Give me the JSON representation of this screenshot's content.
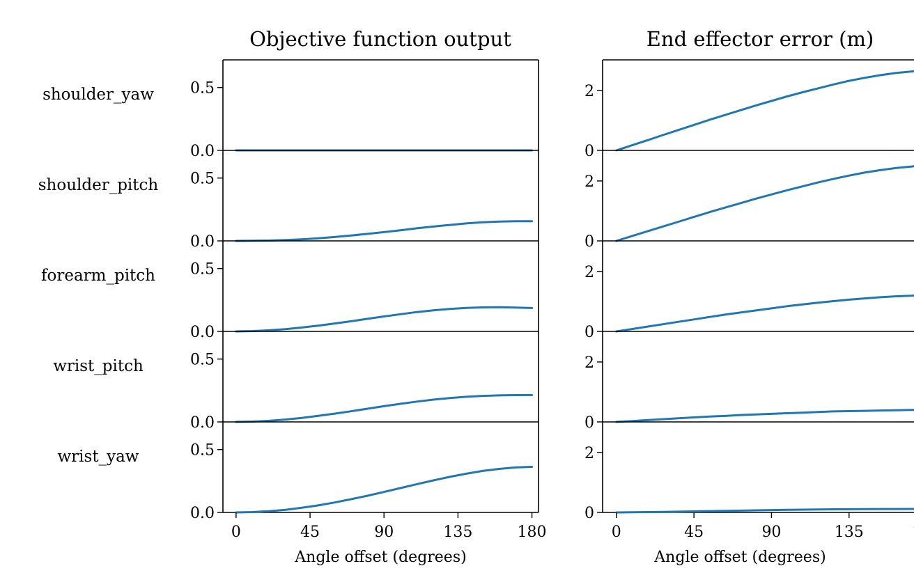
{
  "chart_data": {
    "type": "line",
    "columns": [
      {
        "key": "objective",
        "title": "Objective function output",
        "xlabel": "Angle offset (degrees)"
      },
      {
        "key": "error",
        "title": "End effector error (m)",
        "xlabel": "Angle offset (degrees)"
      }
    ],
    "rows": [
      "shoulder_yaw",
      "shoulder_pitch",
      "forearm_pitch",
      "wrist_pitch",
      "wrist_yaw"
    ],
    "x": [
      0,
      10,
      20,
      30,
      40,
      50,
      60,
      70,
      80,
      90,
      100,
      110,
      120,
      130,
      140,
      150,
      160,
      170,
      180
    ],
    "xlim": [
      -8,
      184
    ],
    "xticks": [
      0,
      45,
      90,
      135,
      180
    ],
    "xtick_labels": [
      "0",
      "45",
      "90",
      "135",
      "180"
    ],
    "objective": {
      "ylim": [
        0,
        0.72
      ],
      "yticks": [
        0,
        0.5
      ],
      "ytick_labels": [
        "0.0",
        "0.5"
      ],
      "series": [
        {
          "row": "shoulder_yaw",
          "values": [
            0,
            0,
            0,
            0,
            0,
            0,
            0,
            0,
            0,
            0,
            0,
            0,
            0,
            0,
            0,
            0,
            0,
            0,
            0
          ]
        },
        {
          "row": "shoulder_pitch",
          "values": [
            0,
            0.001,
            0.003,
            0.007,
            0.013,
            0.021,
            0.031,
            0.043,
            0.056,
            0.07,
            0.085,
            0.1,
            0.114,
            0.127,
            0.139,
            0.148,
            0.154,
            0.157,
            0.157
          ]
        },
        {
          "row": "forearm_pitch",
          "values": [
            0,
            0.003,
            0.009,
            0.018,
            0.031,
            0.046,
            0.063,
            0.081,
            0.1,
            0.119,
            0.137,
            0.154,
            0.168,
            0.179,
            0.187,
            0.191,
            0.192,
            0.19,
            0.186
          ]
        },
        {
          "row": "wrist_pitch",
          "values": [
            0,
            0.003,
            0.009,
            0.019,
            0.032,
            0.048,
            0.066,
            0.085,
            0.105,
            0.125,
            0.144,
            0.162,
            0.177,
            0.19,
            0.2,
            0.207,
            0.211,
            0.213,
            0.214
          ]
        },
        {
          "row": "wrist_yaw",
          "values": [
            0,
            0.003,
            0.01,
            0.021,
            0.037,
            0.056,
            0.079,
            0.105,
            0.133,
            0.163,
            0.194,
            0.225,
            0.255,
            0.283,
            0.308,
            0.33,
            0.346,
            0.358,
            0.363
          ]
        }
      ]
    },
    "error": {
      "ylim": [
        0,
        3.02
      ],
      "yticks": [
        0,
        2
      ],
      "ytick_labels": [
        "0",
        "2"
      ],
      "series": [
        {
          "row": "shoulder_yaw",
          "values": [
            0,
            0.17,
            0.34,
            0.51,
            0.68,
            0.85,
            1.02,
            1.18,
            1.34,
            1.5,
            1.65,
            1.8,
            1.94,
            2.07,
            2.2,
            2.32,
            2.42,
            2.51,
            2.58,
            2.63,
            2.66,
            2.68
          ]
        },
        {
          "row": "shoulder_pitch",
          "values": [
            0,
            0.16,
            0.32,
            0.48,
            0.64,
            0.8,
            0.96,
            1.11,
            1.26,
            1.41,
            1.55,
            1.69,
            1.82,
            1.95,
            2.07,
            2.18,
            2.28,
            2.36,
            2.43,
            2.48,
            2.51,
            2.53
          ]
        },
        {
          "row": "forearm_pitch",
          "values": [
            0,
            0.08,
            0.16,
            0.24,
            0.32,
            0.4,
            0.48,
            0.56,
            0.63,
            0.7,
            0.77,
            0.84,
            0.9,
            0.96,
            1.01,
            1.06,
            1.1,
            1.14,
            1.17,
            1.19,
            1.21,
            1.22
          ]
        },
        {
          "row": "wrist_pitch",
          "values": [
            0,
            0.03,
            0.06,
            0.09,
            0.12,
            0.15,
            0.18,
            0.2,
            0.23,
            0.25,
            0.27,
            0.29,
            0.31,
            0.33,
            0.35,
            0.36,
            0.37,
            0.38,
            0.39,
            0.4,
            0.4,
            0.41
          ]
        },
        {
          "row": "wrist_yaw",
          "values": [
            0,
            0.005,
            0.011,
            0.018,
            0.026,
            0.034,
            0.043,
            0.052,
            0.061,
            0.07,
            0.078,
            0.086,
            0.093,
            0.099,
            0.104,
            0.108,
            0.111,
            0.113,
            0.114,
            0.115,
            0.115,
            0.115
          ]
        }
      ],
      "x": [
        0,
        9,
        18,
        27,
        36,
        45,
        54,
        63,
        72,
        81,
        90,
        99,
        108,
        117,
        126,
        135,
        144,
        153,
        162,
        171,
        176,
        180
      ]
    }
  }
}
